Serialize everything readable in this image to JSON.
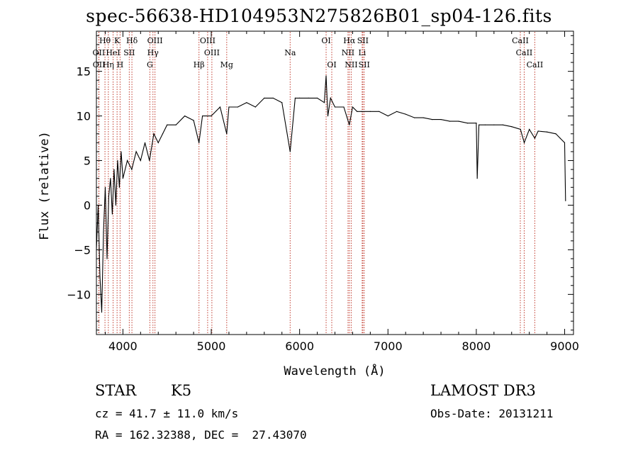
{
  "chart_data": {
    "type": "line",
    "title": "spec-56638-HD104953N275826B01_sp04-126.fits",
    "xlabel": "Wavelength (Å)",
    "ylabel": "Flux (relative)",
    "xlim": [
      3700,
      9100
    ],
    "ylim": [
      -14.5,
      19.5
    ],
    "xticks": [
      4000,
      5000,
      6000,
      7000,
      8000,
      9000
    ],
    "yticks": [
      -10,
      -5,
      0,
      5,
      10,
      15
    ],
    "ytick_labels": [
      "−10",
      "−5",
      "0",
      "5",
      "10",
      "15"
    ],
    "series": [
      {
        "name": "flux",
        "x": [
          3700,
          3720,
          3740,
          3760,
          3780,
          3800,
          3820,
          3840,
          3860,
          3880,
          3900,
          3920,
          3940,
          3960,
          3980,
          4000,
          4050,
          4100,
          4150,
          4200,
          4250,
          4300,
          4350,
          4400,
          4450,
          4500,
          4600,
          4700,
          4800,
          4861,
          4900,
          5000,
          5100,
          5175,
          5200,
          5300,
          5400,
          5500,
          5600,
          5700,
          5800,
          5893,
          5950,
          6000,
          6100,
          6200,
          6280,
          6300,
          6320,
          6350,
          6400,
          6500,
          6563,
          6600,
          6650,
          6700,
          6800,
          6900,
          7000,
          7100,
          7200,
          7300,
          7400,
          7500,
          7600,
          7700,
          7800,
          7900,
          8000,
          8010,
          8030,
          8100,
          8200,
          8300,
          8400,
          8500,
          8542,
          8600,
          8662,
          8700,
          8800,
          8900,
          8950,
          9000,
          9010
        ],
        "y": [
          -5,
          0,
          -8,
          -12,
          -3,
          2,
          -6,
          1,
          3,
          -1,
          4,
          0,
          5,
          2,
          6,
          3,
          5,
          4,
          6,
          5,
          7,
          5,
          8,
          7,
          8,
          9,
          9,
          10,
          9.5,
          7,
          10,
          10,
          11,
          8,
          11,
          11,
          11.5,
          11,
          12,
          12,
          11.5,
          6,
          12,
          12,
          12,
          12,
          11.5,
          14.5,
          10,
          12,
          11,
          11,
          9,
          11,
          10.5,
          10.5,
          10.5,
          10.5,
          10,
          10.5,
          10.2,
          9.8,
          9.8,
          9.6,
          9.6,
          9.4,
          9.4,
          9.2,
          9.2,
          3,
          9,
          9,
          9,
          9,
          8.8,
          8.5,
          7,
          8.5,
          7.5,
          8.3,
          8.2,
          8,
          7.5,
          7,
          0.5
        ],
        "color": "#000000"
      }
    ],
    "lines": [
      {
        "label": "H$\\theta$",
        "text": "Hθ",
        "wavelength": 3797,
        "row": 1
      },
      {
        "label": "OII",
        "text": "OII",
        "wavelength": 3727,
        "row": 2
      },
      {
        "label": "OII (2)",
        "text": "OII",
        "wavelength": 3729,
        "row": 3
      },
      {
        "label": "K",
        "text": "K",
        "wavelength": 3934,
        "row": 1
      },
      {
        "label": "HeI",
        "text": "HeI",
        "wavelength": 3889,
        "row": 2
      },
      {
        "label": "H$\\eta$",
        "text": "Hη",
        "wavelength": 3835,
        "row": 3
      },
      {
        "label": "H$\\delta$",
        "text": "Hδ",
        "wavelength": 4102,
        "row": 1
      },
      {
        "label": "SII",
        "text": "SII",
        "wavelength": 4072,
        "row": 2
      },
      {
        "label": "H",
        "text": "H",
        "wavelength": 3968,
        "row": 3
      },
      {
        "label": "OIII",
        "text": "OIII",
        "wavelength": 4363,
        "row": 1
      },
      {
        "label": "H$\\gamma$",
        "text": "Hγ",
        "wavelength": 4340,
        "row": 2
      },
      {
        "label": "G",
        "text": "G",
        "wavelength": 4305,
        "row": 3
      },
      {
        "label": "H$\\beta$",
        "text": "Hβ",
        "wavelength": 4861,
        "row": 3
      },
      {
        "label": "OIII (4959)",
        "text": "OIII",
        "wavelength": 4959,
        "row": 1
      },
      {
        "label": "OIII (5007)",
        "text": "OIII",
        "wavelength": 5007,
        "row": 2
      },
      {
        "label": "Mg",
        "text": "Mg",
        "wavelength": 5175,
        "row": 3
      },
      {
        "label": "Na",
        "text": "Na",
        "wavelength": 5893,
        "row": 2
      },
      {
        "label": "OI",
        "text": "OI",
        "wavelength": 6300,
        "row": 1
      },
      {
        "label": "OI (6364)",
        "text": "OI",
        "wavelength": 6364,
        "row": 3
      },
      {
        "label": "H$\\alpha$",
        "text": "Hα",
        "wavelength": 6563,
        "row": 1
      },
      {
        "label": "NII",
        "text": "NII",
        "wavelength": 6548,
        "row": 2
      },
      {
        "label": "NII (6584)",
        "text": "NII",
        "wavelength": 6584,
        "row": 3
      },
      {
        "label": "SII (6716)",
        "text": "SII",
        "wavelength": 6716,
        "row": 1
      },
      {
        "label": "Li",
        "text": "Li",
        "wavelength": 6708,
        "row": 2
      },
      {
        "label": "SII (6731)",
        "text": "SII",
        "wavelength": 6731,
        "row": 3
      },
      {
        "label": "CaII (8498)",
        "text": "CaII",
        "wavelength": 8498,
        "row": 1
      },
      {
        "label": "CaII (8542)",
        "text": "CaII",
        "wavelength": 8542,
        "row": 2
      },
      {
        "label": "CaII (8662)",
        "text": "CaII",
        "wavelength": 8662,
        "row": 3
      }
    ]
  },
  "info": {
    "class": "STAR",
    "subclass": "K5",
    "survey": "LAMOST DR3",
    "cz": "cz = 41.7 ± 11.0 km/s",
    "obs_date": "Obs-Date: 20131211",
    "radec": "RA = 162.32388, DEC =  27.43070"
  }
}
